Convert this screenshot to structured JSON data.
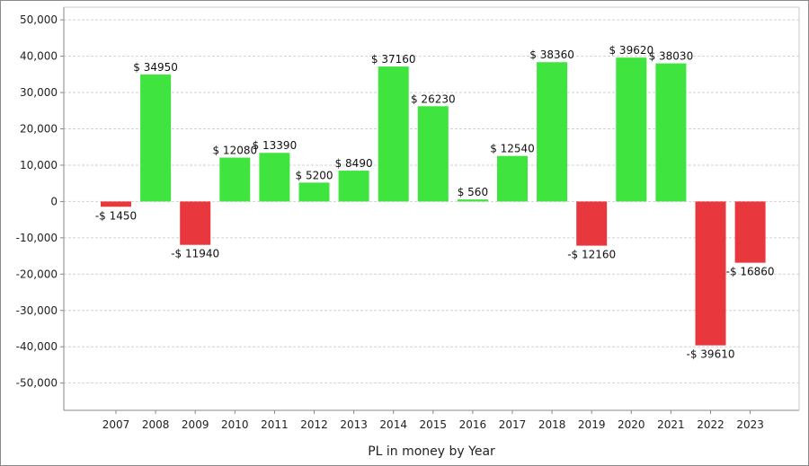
{
  "chart_data": {
    "type": "bar",
    "title": "",
    "xlabel": "PL in money by Year",
    "ylabel": "",
    "ylim": [
      -57500,
      53500
    ],
    "yticks": [
      -50000,
      -40000,
      -30000,
      -20000,
      -10000,
      0,
      10000,
      20000,
      30000,
      40000,
      50000
    ],
    "ytick_labels": [
      "-50,000",
      "-40,000",
      "-30,000",
      "-20,000",
      "-10,000",
      "0",
      "10,000",
      "20,000",
      "30,000",
      "40,000",
      "50,000"
    ],
    "grid": true,
    "legend": "none",
    "categories": [
      "2007",
      "2008",
      "2009",
      "2010",
      "2011",
      "2012",
      "2013",
      "2014",
      "2015",
      "2016",
      "2017",
      "2018",
      "2019",
      "2020",
      "2021",
      "2022",
      "2023"
    ],
    "values": [
      -1450,
      34950,
      -11940,
      12080,
      13390,
      5200,
      8490,
      37160,
      26230,
      560,
      12540,
      38360,
      -12160,
      39620,
      38030,
      -39610,
      -16860
    ],
    "value_labels": [
      "-$ 1450",
      "$ 34950",
      "-$ 11940",
      "$ 12080",
      "$ 13390",
      "$ 5200",
      "$ 8490",
      "$ 37160",
      "$ 26230",
      "$ 560",
      "$ 12540",
      "$ 38360",
      "-$ 12160",
      "$ 39620",
      "$ 38030",
      "-$ 39610",
      "-$ 16860"
    ],
    "colors": {
      "positive": "#3fe43f",
      "negative": "#e8383d"
    }
  }
}
